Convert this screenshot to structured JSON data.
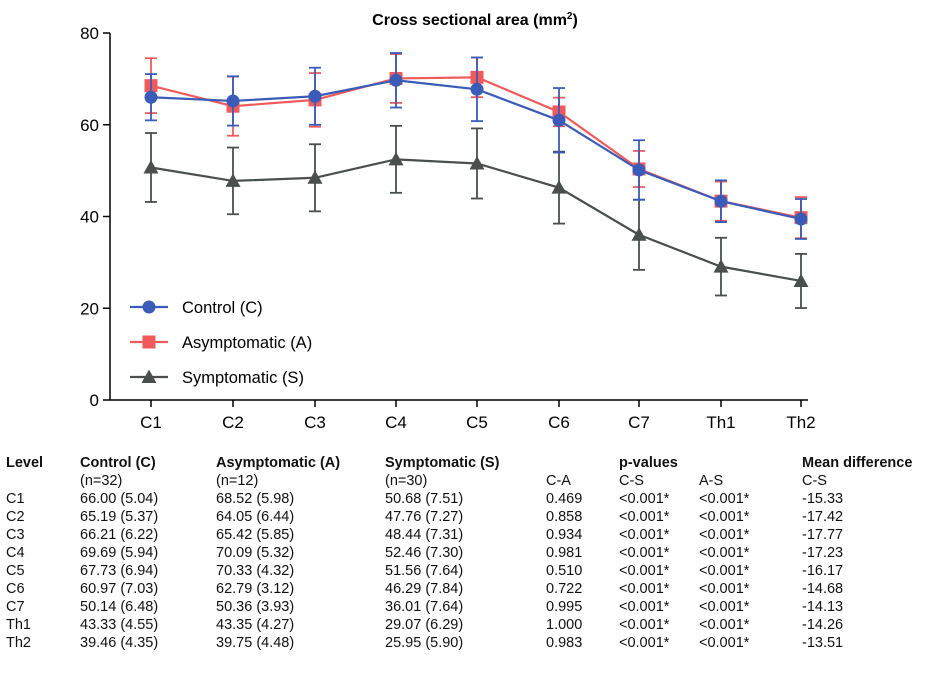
{
  "chart_data": {
    "type": "line",
    "title_main": "Cross sectional area (mm",
    "title_sup": "2",
    "title_close": ")",
    "xlabel": "",
    "ylabel": "",
    "ylim": [
      0,
      80
    ],
    "yticks": [
      0,
      20,
      40,
      60,
      80
    ],
    "categories": [
      "C1",
      "C2",
      "C3",
      "C4",
      "C5",
      "C6",
      "C7",
      "Th1",
      "Th2"
    ],
    "legend_position": "bottom-left",
    "grid": false,
    "series": [
      {
        "name": "Symptomatic (S)",
        "marker": "triangle",
        "color": "#4a4f4e",
        "values": [
          50.68,
          47.76,
          48.44,
          52.46,
          51.56,
          46.29,
          36.01,
          29.07,
          25.95
        ],
        "sd": [
          7.51,
          7.27,
          7.31,
          7.3,
          7.64,
          7.84,
          7.64,
          6.29,
          5.9
        ]
      },
      {
        "name": "Asymptomatic (A)",
        "marker": "square",
        "color": "#f05a5a",
        "values": [
          68.52,
          64.05,
          65.42,
          70.09,
          70.33,
          62.79,
          50.36,
          43.35,
          39.75
        ],
        "sd": [
          5.98,
          6.44,
          5.85,
          5.32,
          4.32,
          3.12,
          3.93,
          4.27,
          4.48
        ]
      },
      {
        "name": "Control (C)",
        "marker": "circle",
        "color": "#3a5cb8",
        "values": [
          66.0,
          65.19,
          66.21,
          69.69,
          67.73,
          60.97,
          50.14,
          43.33,
          39.46
        ],
        "sd": [
          5.04,
          5.37,
          6.22,
          5.94,
          6.94,
          7.03,
          6.48,
          4.55,
          4.35
        ]
      }
    ]
  },
  "table": {
    "headers": [
      "Level",
      "Control (C)",
      "Asymptomatic (A)",
      "Symptomatic (S)",
      "",
      "p-values",
      "",
      "Mean difference"
    ],
    "subheaders": [
      "",
      "(n=32)",
      "(n=12)",
      "(n=30)",
      "C-A",
      "C-S",
      "A-S",
      "C-S"
    ],
    "rows": [
      [
        "C1",
        "66.00 (5.04)",
        "68.52 (5.98)",
        "50.68 (7.51)",
        "0.469",
        "<0.001*",
        "<0.001*",
        "-15.33"
      ],
      [
        "C2",
        "65.19 (5.37)",
        "64.05 (6.44)",
        "47.76 (7.27)",
        "0.858",
        "<0.001*",
        "<0.001*",
        "-17.42"
      ],
      [
        "C3",
        "66.21 (6.22)",
        "65.42 (5.85)",
        "48.44 (7.31)",
        "0.934",
        "<0.001*",
        "<0.001*",
        "-17.77"
      ],
      [
        "C4",
        "69.69 (5.94)",
        "70.09 (5.32)",
        "52.46 (7.30)",
        "0.981",
        "<0.001*",
        "<0.001*",
        "-17.23"
      ],
      [
        "C5",
        "67.73 (6.94)",
        "70.33 (4.32)",
        "51.56 (7.64)",
        "0.510",
        "<0.001*",
        "<0.001*",
        "-16.17"
      ],
      [
        "C6",
        "60.97 (7.03)",
        "62.79 (3.12)",
        "46.29 (7.84)",
        "0.722",
        "<0.001*",
        "<0.001*",
        "-14.68"
      ],
      [
        "C7",
        "50.14 (6.48)",
        "50.36 (3.93)",
        "36.01 (7.64)",
        "0.995",
        "<0.001*",
        "<0.001*",
        "-14.13"
      ],
      [
        "Th1",
        "43.33 (4.55)",
        "43.35 (4.27)",
        "29.07 (6.29)",
        "1.000",
        "<0.001*",
        "<0.001*",
        "-14.26"
      ],
      [
        "Th2",
        "39.46 (4.35)",
        "39.75 (4.48)",
        "25.95 (5.90)",
        "0.983",
        "<0.001*",
        "<0.001*",
        "-13.51"
      ]
    ]
  }
}
